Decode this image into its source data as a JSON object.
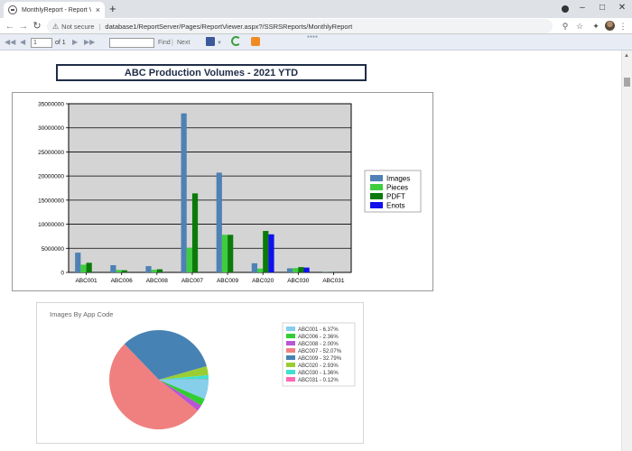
{
  "browser": {
    "tab_title": "MonthlyReport - Report Viewer",
    "tab_close": "×",
    "new_tab": "+",
    "security_icon": "warning-triangle-icon",
    "not_secure": "Not secure",
    "url": "database1/ReportServer/Pages/ReportViewer.aspx?/SSRSReports/MonthlyReport"
  },
  "viewer_toolbar": {
    "page_value": "1",
    "of_label": "of 1",
    "find_label": "Find",
    "find_sep": "|",
    "next_label": "Next"
  },
  "report": {
    "title": "ABC Production Volumes - 2021 YTD",
    "pie_title": "Images By App Code"
  },
  "chart_data": [
    {
      "type": "bar",
      "categories": [
        "ABC001",
        "ABC006",
        "ABC008",
        "ABC007",
        "ABC009",
        "ABC020",
        "ABC030",
        "ABC031"
      ],
      "ylim": [
        0,
        35000000
      ],
      "yticks": [
        0,
        5000000,
        10000000,
        15000000,
        20000000,
        25000000,
        30000000,
        35000000
      ],
      "ytick_labels": [
        "0",
        "5000000",
        "10000000",
        "15000000",
        "20000000",
        "25000000",
        "30000000",
        "35000000"
      ],
      "grid": true,
      "legend": "right",
      "series": [
        {
          "name": "Images",
          "color": "#4e81b4",
          "values": [
            4100000,
            1500000,
            1300000,
            33000000,
            20700000,
            1900000,
            850000,
            60000
          ]
        },
        {
          "name": "Pieces",
          "color": "#3fcc3f",
          "values": [
            1600000,
            500000,
            550000,
            5100000,
            7800000,
            800000,
            900000,
            30000
          ]
        },
        {
          "name": "PDFT",
          "color": "#0b7a0b",
          "values": [
            2000000,
            450000,
            650000,
            16400000,
            7800000,
            8600000,
            1100000,
            20000
          ]
        },
        {
          "name": "Enots",
          "color": "#1010ee",
          "values": [
            0,
            0,
            0,
            0,
            0,
            7900000,
            1000000,
            0
          ]
        }
      ]
    },
    {
      "type": "pie",
      "title": "Images By App Code",
      "legend": "right",
      "labels": [
        "ABC001 - 6.37%",
        "ABC006 - 2.36%",
        "ABC008 - 2.00%",
        "ABC007 - 52.07%",
        "ABC009 - 32.79%",
        "ABC020 - 2.93%",
        "ABC030 - 1.36%",
        "ABC031 - 0.12%"
      ],
      "values": [
        6.37,
        2.36,
        2.0,
        52.07,
        32.79,
        2.93,
        1.36,
        0.12
      ],
      "colors": [
        "#87ceeb",
        "#32cd32",
        "#ba55d3",
        "#f08080",
        "#4682b4",
        "#9acd32",
        "#40e0d0",
        "#ff69b4"
      ]
    }
  ]
}
